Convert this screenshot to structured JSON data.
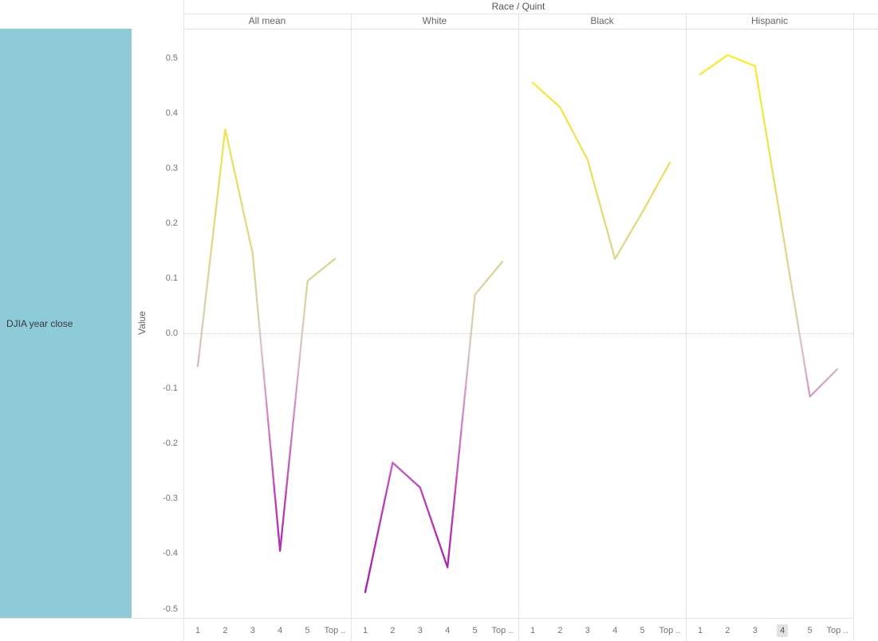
{
  "title_row": {
    "label": "Race / Quint"
  },
  "columns": [
    "All mean",
    "White",
    "Black",
    "Hispanic"
  ],
  "row": {
    "label": "DJIA year close"
  },
  "y_axis": {
    "title": "Value",
    "tick_labels": [
      "0.5",
      "0.4",
      "0.3",
      "0.2",
      "0.1",
      "0.0",
      "-0.1",
      "-0.2",
      "-0.3",
      "-0.4",
      "-0.5"
    ]
  },
  "x_axis": {
    "tick_labels": [
      "1",
      "2",
      "3",
      "4",
      "5",
      "Top .."
    ],
    "highlighted": {
      "column": "Hispanic",
      "label": "4"
    }
  },
  "colors": {
    "row_cell": "#8ecbd9",
    "border": "#e3e3e3",
    "zero_line": "#cbcbcb",
    "text_muted": "#737373",
    "text_header": "#666666"
  },
  "chart_data": {
    "type": "line",
    "title": "Race / Quint",
    "ylabel": "Value",
    "row_label": "DJIA year close",
    "categories": [
      "1",
      "2",
      "3",
      "4",
      "5",
      "Top .."
    ],
    "ylim": [
      -0.52,
      0.55
    ],
    "zero_line": true,
    "grid": false,
    "legend": "none",
    "color_encoding": "line colored continuously by Value (yellow = high positive, magenta = negative)",
    "series": [
      {
        "name": "All mean",
        "values": [
          -0.06,
          0.37,
          0.145,
          -0.395,
          0.095,
          0.135
        ]
      },
      {
        "name": "White",
        "values": [
          -0.47,
          -0.235,
          -0.28,
          -0.425,
          0.07,
          0.13
        ]
      },
      {
        "name": "Black",
        "values": [
          0.455,
          0.41,
          0.315,
          0.135,
          0.22,
          0.31
        ]
      },
      {
        "name": "Hispanic",
        "values": [
          0.47,
          0.505,
          0.485,
          0.185,
          -0.115,
          -0.065
        ]
      }
    ],
    "color_scale_stops": [
      [
        -0.5,
        "#9e17a5"
      ],
      [
        -0.3,
        "#bb3fb8"
      ],
      [
        -0.15,
        "#cf8ac6"
      ],
      [
        -0.03,
        "#d9c2cb"
      ],
      [
        0.03,
        "#d8d2ae"
      ],
      [
        0.15,
        "#ddd68c"
      ],
      [
        0.3,
        "#e9e05f"
      ],
      [
        0.5,
        "#f8ec33"
      ]
    ]
  }
}
